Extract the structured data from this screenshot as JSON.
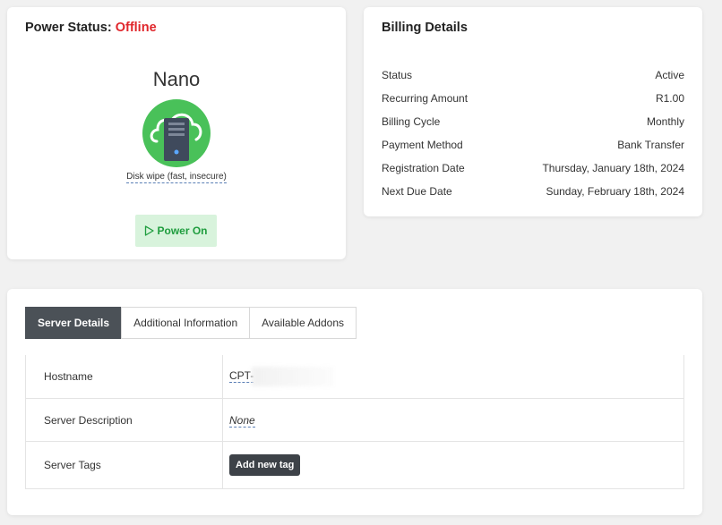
{
  "power": {
    "title_prefix": "Power Status:",
    "status": "Offline",
    "product_name": "Nano",
    "disk_wipe": "Disk wipe (fast, insecure)",
    "power_on_label": "Power On",
    "colors": {
      "offline": "#e0262b",
      "icon_green": "#49c159",
      "button_bg": "#d8f3dc",
      "button_text": "#1f9d3e"
    }
  },
  "billing": {
    "title": "Billing Details",
    "rows": [
      {
        "label": "Status",
        "value": "Active"
      },
      {
        "label": "Recurring Amount",
        "value": "R1.00"
      },
      {
        "label": "Billing Cycle",
        "value": "Monthly"
      },
      {
        "label": "Payment Method",
        "value": "Bank Transfer"
      },
      {
        "label": "Registration Date",
        "value": "Thursday, January 18th, 2024"
      },
      {
        "label": "Next Due Date",
        "value": "Sunday, February 18th, 2024"
      }
    ]
  },
  "tabs": [
    {
      "label": "Server Details",
      "active": true
    },
    {
      "label": "Additional Information",
      "active": false
    },
    {
      "label": "Available Addons",
      "active": false
    }
  ],
  "server_details": {
    "hostname_label": "Hostname",
    "hostname_value": "CPT-",
    "description_label": "Server Description",
    "description_value": "None",
    "tags_label": "Server Tags",
    "add_tag_label": "Add new tag"
  }
}
